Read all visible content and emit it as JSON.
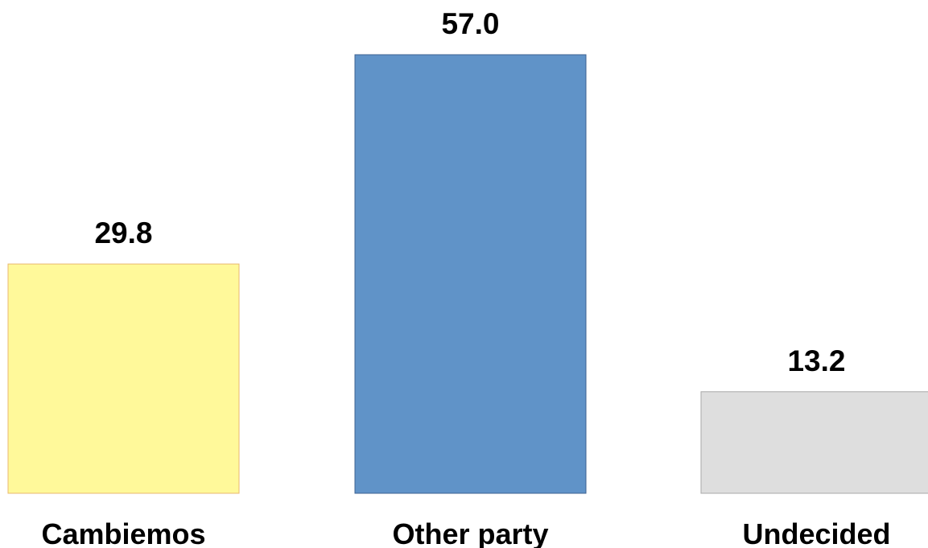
{
  "chart_data": {
    "type": "bar",
    "categories": [
      "Cambiemos",
      "Other party",
      "Undecided"
    ],
    "values": [
      29.8,
      57.0,
      13.2
    ],
    "value_labels": [
      "29.8",
      "57.0",
      "13.2"
    ],
    "colors": [
      "#FFF99A",
      "#6093C8",
      "#DEDEDE"
    ],
    "edge_colors": [
      "#E8B870",
      "#3C6290",
      "#A8A8A8"
    ],
    "title": "",
    "xlabel": "",
    "ylabel": "",
    "ylim": [
      0,
      57.0
    ],
    "grid": false,
    "legend": "none"
  }
}
